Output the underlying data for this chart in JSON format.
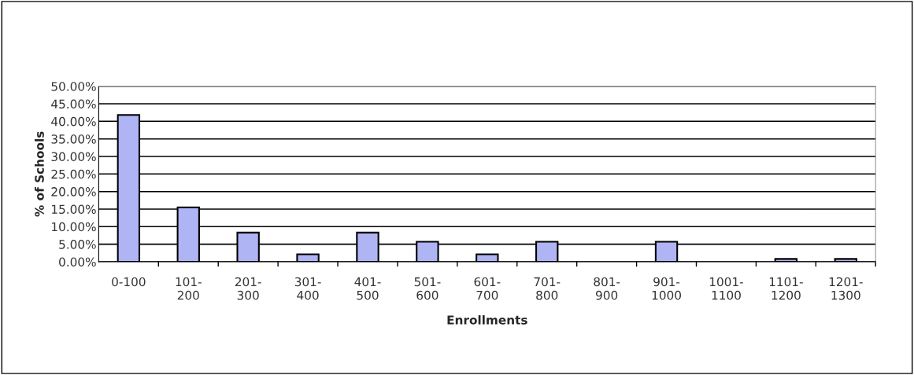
{
  "chart_data": {
    "type": "bar",
    "categories": [
      "0-100",
      "101-200",
      "201-300",
      "301-400",
      "401-500",
      "501-600",
      "601-700",
      "701-800",
      "801-900",
      "901-1000",
      "1001-1100",
      "1101-1200",
      "1201-1300"
    ],
    "values": [
      41.8,
      15.5,
      8.3,
      2.1,
      8.3,
      5.7,
      2.1,
      5.7,
      0,
      5.7,
      0,
      0.8,
      0.8
    ],
    "color": "#aeb4f4",
    "xlabel": "Enrollments",
    "ylabel": "% of Schools",
    "ylim": [
      0,
      50
    ],
    "yticks": [
      {
        "value": 0,
        "label": "0.00%"
      },
      {
        "value": 5,
        "label": "5.00%"
      },
      {
        "value": 10,
        "label": "10.00%"
      },
      {
        "value": 15,
        "label": "15.00%"
      },
      {
        "value": 20,
        "label": "20.00%"
      },
      {
        "value": 25,
        "label": "25.00%"
      },
      {
        "value": 30,
        "label": "30.00%"
      },
      {
        "value": 35,
        "label": "35.00%"
      },
      {
        "value": 40,
        "label": "40.00%"
      },
      {
        "value": 45,
        "label": "45.00%"
      },
      {
        "value": 50,
        "label": "50.00%"
      }
    ],
    "grid": "y",
    "legend": false
  }
}
